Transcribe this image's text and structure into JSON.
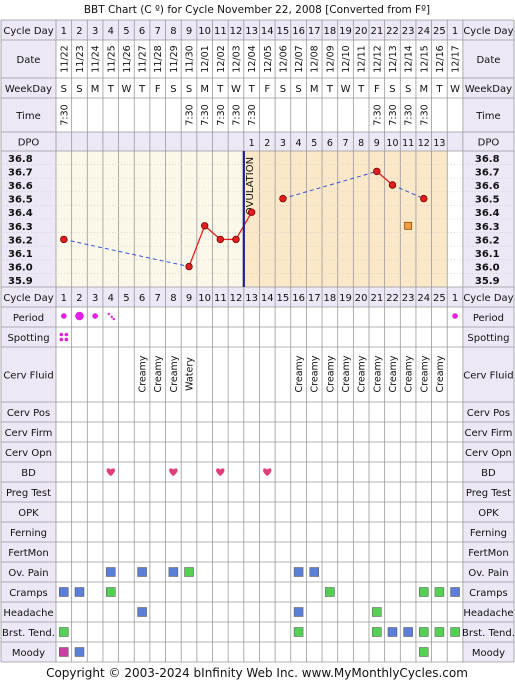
{
  "header": {
    "title": "BBT Chart (C º) for Cycle November 22, 2008  [Converted from Fº]"
  },
  "footer": {
    "copyright": "Copyright © 2003-2024 bInfinity Web Inc.    www.MyMonthlyCycles.com"
  },
  "row_labels": {
    "cycle_day": "Cycle Day",
    "date": "Date",
    "weekday": "WeekDay",
    "time": "Time",
    "dpo": "DPO",
    "period": "Period",
    "spotting": "Spotting",
    "cerv_fluid": "Cerv Fluid",
    "cerv_pos": "Cerv Pos",
    "cerv_firm": "Cerv Firm",
    "cerv_opn": "Cerv Opn",
    "bd": "BD",
    "preg_test": "Preg Test",
    "opk": "OPK",
    "ferning": "Ferning",
    "fertmon": "FertMon",
    "ov_pain": "Ov. Pain",
    "cramps": "Cramps",
    "headache": "Headache",
    "brst_tend": "Brst. Tend.",
    "moody": "Moody"
  },
  "colors": {
    "grid": "#9a9a9a",
    "label_bg": "#ece8f5",
    "pre_ov_bg": "#fbf8e9",
    "post_ov_bg": "#fbe8c8",
    "temp_line": "#e02020",
    "point_fill": "#e02020",
    "coverline": "#3355dd",
    "ovulation_line": "#1a1a9a",
    "period_dot": "#e020e0",
    "heart": "#e0407a",
    "blue_sq": "#5b7fd6",
    "green_sq": "#55d055",
    "magenta_sq": "#cc3f9f",
    "excluded_fill": "#f0a040"
  },
  "chart_data": {
    "type": "line",
    "title": "BBT Chart (C º) for Cycle November 22, 2008  [Converted from Fº]",
    "cycle_days": [
      "1",
      "2",
      "3",
      "4",
      "5",
      "6",
      "7",
      "8",
      "9",
      "10",
      "11",
      "12",
      "13",
      "14",
      "15",
      "16",
      "17",
      "18",
      "19",
      "20",
      "21",
      "22",
      "23",
      "24",
      "25",
      "1"
    ],
    "dates": [
      "11/22",
      "11/23",
      "11/24",
      "11/25",
      "11/26",
      "11/27",
      "11/28",
      "11/29",
      "11/30",
      "12/01",
      "12/02",
      "12/03",
      "12/04",
      "12/05",
      "12/06",
      "12/07",
      "12/08",
      "12/09",
      "12/10",
      "12/11",
      "12/12",
      "12/13",
      "12/14",
      "12/15",
      "12/16",
      "12/17"
    ],
    "weekdays": [
      "S",
      "S",
      "M",
      "T",
      "W",
      "T",
      "F",
      "S",
      "S",
      "M",
      "T",
      "W",
      "T",
      "F",
      "S",
      "S",
      "M",
      "T",
      "W",
      "T",
      "F",
      "S",
      "S",
      "M",
      "T",
      "W"
    ],
    "times": [
      "7:30",
      "",
      "",
      "",
      "",
      "",
      "",
      "",
      "7:30",
      "7:30",
      "7:30",
      "7:30",
      "7:30",
      "",
      "",
      "",
      "",
      "",
      "",
      "",
      "7:30",
      "7:30",
      "7:30",
      "7:30",
      "",
      ""
    ],
    "dpo": [
      "",
      "",
      "",
      "",
      "",
      "",
      "",
      "",
      "",
      "",
      "",
      "",
      "1",
      "2",
      "3",
      "4",
      "5",
      "6",
      "7",
      "8",
      "9",
      "10",
      "11",
      "12",
      "13",
      ""
    ],
    "y_ticks": [
      "36.8",
      "36.7",
      "36.6",
      "36.5",
      "36.4",
      "36.3",
      "36.2",
      "36.1",
      "36.0",
      "35.9"
    ],
    "ylim": [
      35.9,
      36.8
    ],
    "temps": [
      {
        "day": 1,
        "temp": 36.2
      },
      {
        "day": 9,
        "temp": 36.0
      },
      {
        "day": 10,
        "temp": 36.3
      },
      {
        "day": 11,
        "temp": 36.2
      },
      {
        "day": 12,
        "temp": 36.2
      },
      {
        "day": 13,
        "temp": 36.4
      },
      {
        "day": 15,
        "temp": 36.5
      },
      {
        "day": 21,
        "temp": 36.7
      },
      {
        "day": 22,
        "temp": 36.6
      },
      {
        "day": 24,
        "temp": 36.5
      }
    ],
    "excluded_temps": [
      {
        "day": 23,
        "temp": 36.3
      }
    ],
    "ovulation_after_day": 12,
    "ovulation_label": "OVULATION",
    "cervical_fluid": [
      {
        "day": 6,
        "label": "Creamy"
      },
      {
        "day": 7,
        "label": "Creamy"
      },
      {
        "day": 8,
        "label": "Creamy"
      },
      {
        "day": 9,
        "label": "Watery"
      },
      {
        "day": 16,
        "label": "Creamy"
      },
      {
        "day": 17,
        "label": "Creamy"
      },
      {
        "day": 18,
        "label": "Creamy"
      },
      {
        "day": 19,
        "label": "Creamy"
      },
      {
        "day": 20,
        "label": "Creamy"
      },
      {
        "day": 21,
        "label": "Creamy"
      },
      {
        "day": 22,
        "label": "Creamy"
      },
      {
        "day": 23,
        "label": "Creamy"
      },
      {
        "day": 24,
        "label": "Creamy"
      },
      {
        "day": 25,
        "label": "Creamy"
      }
    ],
    "period": [
      {
        "col": 1,
        "size": "small"
      },
      {
        "col": 2,
        "size": "large"
      },
      {
        "col": 3,
        "size": "small"
      },
      {
        "col": 4,
        "size": "spot"
      },
      {
        "col": 26,
        "size": "small"
      }
    ],
    "spotting_cols": [
      1
    ],
    "bd_cols": [
      4,
      8,
      11,
      14
    ],
    "symptoms": {
      "ov_pain": [
        {
          "col": 4,
          "color": "blue"
        },
        {
          "col": 6,
          "color": "blue"
        },
        {
          "col": 8,
          "color": "blue"
        },
        {
          "col": 9,
          "color": "green"
        },
        {
          "col": 16,
          "color": "blue"
        },
        {
          "col": 17,
          "color": "blue"
        }
      ],
      "cramps": [
        {
          "col": 1,
          "color": "blue"
        },
        {
          "col": 2,
          "color": "blue"
        },
        {
          "col": 4,
          "color": "green"
        },
        {
          "col": 18,
          "color": "green"
        },
        {
          "col": 24,
          "color": "green"
        },
        {
          "col": 25,
          "color": "green"
        },
        {
          "col": 26,
          "color": "blue"
        }
      ],
      "headache": [
        {
          "col": 6,
          "color": "blue"
        },
        {
          "col": 16,
          "color": "blue"
        },
        {
          "col": 21,
          "color": "green"
        }
      ],
      "brst_tend": [
        {
          "col": 1,
          "color": "green"
        },
        {
          "col": 16,
          "color": "green"
        },
        {
          "col": 21,
          "color": "green"
        },
        {
          "col": 22,
          "color": "blue"
        },
        {
          "col": 23,
          "color": "blue"
        },
        {
          "col": 24,
          "color": "green"
        },
        {
          "col": 25,
          "color": "green"
        },
        {
          "col": 26,
          "color": "green"
        }
      ],
      "moody": [
        {
          "col": 1,
          "color": "magenta"
        },
        {
          "col": 2,
          "color": "blue"
        },
        {
          "col": 24,
          "color": "green"
        }
      ]
    }
  }
}
